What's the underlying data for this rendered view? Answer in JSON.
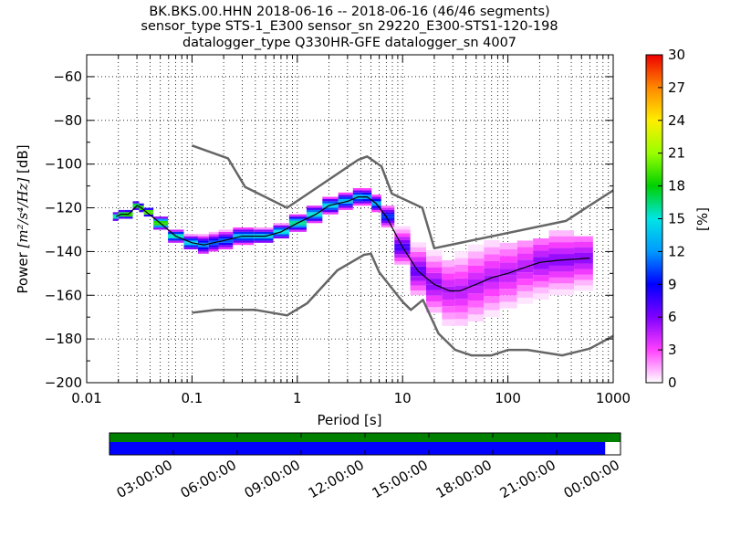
{
  "chart_data": {
    "type": "heatmap",
    "subtype": "probabilistic power spectral density",
    "title_lines": [
      "BK.BKS.00.HHN   2018-06-16 -- 2018-06-16  (46/46 segments)",
      "sensor_type STS-1_E300 sensor_sn 29220_E300-STS1-120-198",
      "datalogger_type Q330HR-GFE datalogger_sn 4007"
    ],
    "xlabel": "Period [s]",
    "ylabel_text": "Power",
    "ylabel_units": "[m²/s⁴/Hz]",
    "ylabel_unit_suffix": "[dB]",
    "xscale": "log",
    "xlim": [
      0.01,
      1000
    ],
    "ylim": [
      -200,
      -50
    ],
    "x_ticks": [
      0.01,
      0.1,
      1,
      10,
      100,
      1000
    ],
    "x_tick_labels": [
      "0.01",
      "0.1",
      "1",
      "10",
      "100",
      "1000"
    ],
    "y_ticks": [
      -200,
      -180,
      -160,
      -140,
      -120,
      -100,
      -80,
      -60
    ],
    "y_tick_labels": [
      "−200",
      "−180",
      "−160",
      "−140",
      "−120",
      "−100",
      "−80",
      "−60"
    ],
    "grid": true,
    "colorbar": {
      "label": "[%]",
      "range": [
        0,
        30
      ],
      "ticks": [
        0,
        3,
        6,
        9,
        12,
        15,
        18,
        21,
        24,
        27,
        30
      ],
      "tick_labels": [
        "0",
        "3",
        "6",
        "9",
        "12",
        "15",
        "18",
        "21",
        "24",
        "27",
        "30"
      ]
    },
    "noise_model_high": {
      "x": [
        0.1,
        0.22,
        0.32,
        0.8,
        3.8,
        4.6,
        6.3,
        7.9,
        15.4,
        20,
        354.8,
        1000
      ],
      "y": [
        -91.5,
        -97.4,
        -110.5,
        -120,
        -98,
        -96.5,
        -101,
        -113.5,
        -120,
        -138.5,
        -126,
        -112
      ]
    },
    "noise_model_low": {
      "x": [
        0.1,
        0.17,
        0.4,
        0.8,
        1.24,
        2.4,
        4.3,
        5.0,
        6.0,
        10.0,
        12.0,
        15.6,
        21.9,
        31.6,
        45,
        70,
        101,
        154,
        328,
        600,
        1000
      ],
      "y": [
        -168,
        -166.7,
        -166.7,
        -169.2,
        -163.7,
        -148.6,
        -141.5,
        -141,
        -149.5,
        -163,
        -166.7,
        -162.1,
        -177.5,
        -185,
        -187.5,
        -187.5,
        -185,
        -185,
        -187.5,
        -184.4,
        -178.6
      ]
    },
    "mode_line": {
      "x": [
        0.019,
        0.021,
        0.025,
        0.03,
        0.033,
        0.037,
        0.05,
        0.07,
        0.1,
        0.13,
        0.16,
        0.2,
        0.3,
        0.5,
        0.7,
        1,
        1.5,
        2,
        3,
        3.8,
        4.6,
        5.6,
        7,
        10,
        14,
        20,
        28,
        35,
        50,
        70,
        100,
        150,
        200,
        300,
        600
      ],
      "y": [
        -124,
        -123,
        -123,
        -119,
        -120,
        -122,
        -127,
        -133,
        -136,
        -137,
        -136,
        -135,
        -133,
        -133,
        -131,
        -127,
        -123,
        -119,
        -117,
        -115,
        -115,
        -118,
        -124,
        -138,
        -149,
        -155,
        -158,
        -158,
        -155,
        -152,
        -150,
        -147,
        -145,
        -144,
        -143
      ]
    },
    "density_cells": [
      {
        "x": 0.019,
        "lo": -126,
        "hi": -122,
        "pct": 20
      },
      {
        "x": 0.021,
        "lo": -125,
        "hi": -121,
        "pct": 22
      },
      {
        "x": 0.025,
        "lo": -125,
        "hi": -121,
        "pct": 24
      },
      {
        "x": 0.03,
        "lo": -121,
        "hi": -117,
        "pct": 22
      },
      {
        "x": 0.033,
        "lo": -122,
        "hi": -118,
        "pct": 24
      },
      {
        "x": 0.037,
        "lo": -124,
        "hi": -120,
        "pct": 25
      },
      {
        "x": 0.05,
        "lo": -130,
        "hi": -124,
        "pct": 22
      },
      {
        "x": 0.07,
        "lo": -136,
        "hi": -130,
        "pct": 18
      },
      {
        "x": 0.1,
        "lo": -139,
        "hi": -132,
        "pct": 16
      },
      {
        "x": 0.13,
        "lo": -141,
        "hi": -132,
        "pct": 13
      },
      {
        "x": 0.16,
        "lo": -140,
        "hi": -131,
        "pct": 12
      },
      {
        "x": 0.2,
        "lo": -139,
        "hi": -130,
        "pct": 12
      },
      {
        "x": 0.3,
        "lo": -137,
        "hi": -129,
        "pct": 15
      },
      {
        "x": 0.5,
        "lo": -136,
        "hi": -129,
        "pct": 16
      },
      {
        "x": 0.7,
        "lo": -134,
        "hi": -127,
        "pct": 17
      },
      {
        "x": 1,
        "lo": -131,
        "hi": -123,
        "pct": 18
      },
      {
        "x": 1.5,
        "lo": -127,
        "hi": -119,
        "pct": 17
      },
      {
        "x": 2,
        "lo": -123,
        "hi": -115,
        "pct": 16
      },
      {
        "x": 3,
        "lo": -121,
        "hi": -113,
        "pct": 15
      },
      {
        "x": 3.8,
        "lo": -119,
        "hi": -111,
        "pct": 15
      },
      {
        "x": 4.6,
        "lo": -119,
        "hi": -111,
        "pct": 14
      },
      {
        "x": 5.6,
        "lo": -122,
        "hi": -114,
        "pct": 14
      },
      {
        "x": 7,
        "lo": -129,
        "hi": -119,
        "pct": 11
      },
      {
        "x": 10,
        "lo": -146,
        "hi": -130,
        "pct": 8
      },
      {
        "x": 14,
        "lo": -160,
        "hi": -138,
        "pct": 7
      },
      {
        "x": 20,
        "lo": -168,
        "hi": -142,
        "pct": 6
      },
      {
        "x": 28,
        "lo": -174,
        "hi": -144,
        "pct": 5
      },
      {
        "x": 35,
        "lo": -174,
        "hi": -143,
        "pct": 5
      },
      {
        "x": 50,
        "lo": -172,
        "hi": -140,
        "pct": 5
      },
      {
        "x": 70,
        "lo": -170,
        "hi": -138,
        "pct": 5
      },
      {
        "x": 100,
        "lo": -166,
        "hi": -136,
        "pct": 5
      },
      {
        "x": 150,
        "lo": -164,
        "hi": -135,
        "pct": 5
      },
      {
        "x": 200,
        "lo": -162,
        "hi": -134,
        "pct": 6
      },
      {
        "x": 300,
        "lo": -160,
        "hi": -133,
        "pct": 6
      },
      {
        "x": 600,
        "lo": -158,
        "hi": -133,
        "pct": 6
      }
    ],
    "data_coverage": {
      "time_ticks": [
        "03:00:00",
        "06:00:00",
        "09:00:00",
        "12:00:00",
        "15:00:00",
        "18:00:00",
        "21:00:00",
        "00:00:00"
      ],
      "green_fraction": 1.0,
      "blue_fraction": 0.97
    }
  },
  "colors": {
    "noise_model": "#666666",
    "mode_line": "#000000",
    "coverage_green": "#008000",
    "coverage_blue": "#0000ff"
  }
}
